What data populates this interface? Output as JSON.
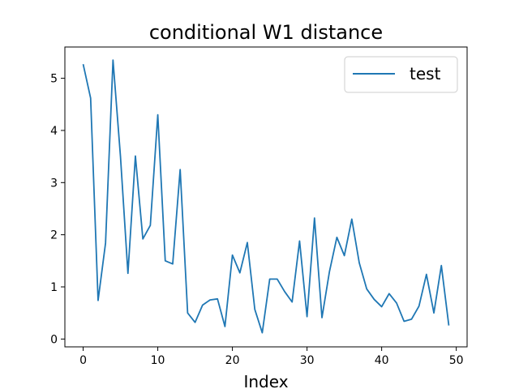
{
  "chart_data": {
    "type": "line",
    "title": "conditional W1 distance",
    "xlabel": "Index",
    "ylabel": "",
    "xlim": [
      -2.45,
      51.45
    ],
    "ylim": [
      -0.15,
      5.6
    ],
    "xticks": [
      0,
      10,
      20,
      30,
      40,
      50
    ],
    "yticks": [
      0,
      1,
      2,
      3,
      4,
      5
    ],
    "grid": false,
    "legend_position": "top-right",
    "series": [
      {
        "name": "test",
        "color": "#1f77b4",
        "x": [
          0,
          1,
          2,
          3,
          4,
          5,
          6,
          7,
          8,
          9,
          10,
          11,
          12,
          13,
          14,
          15,
          16,
          17,
          18,
          19,
          20,
          21,
          22,
          23,
          24,
          25,
          26,
          27,
          28,
          29,
          30,
          31,
          32,
          33,
          34,
          35,
          36,
          37,
          38,
          39,
          40,
          41,
          42,
          43,
          44,
          45,
          46,
          47,
          48,
          49
        ],
        "values": [
          5.27,
          4.62,
          0.74,
          1.84,
          5.35,
          3.5,
          1.26,
          3.51,
          1.92,
          2.18,
          4.3,
          1.5,
          1.44,
          3.25,
          0.5,
          0.32,
          0.65,
          0.75,
          0.77,
          0.24,
          1.61,
          1.27,
          1.85,
          0.57,
          0.12,
          1.15,
          1.15,
          0.91,
          0.71,
          1.88,
          0.43,
          2.32,
          0.41,
          1.29,
          1.95,
          1.6,
          2.3,
          1.46,
          0.96,
          0.76,
          0.62,
          0.87,
          0.69,
          0.34,
          0.38,
          0.63,
          1.24,
          0.5,
          1.41,
          0.26
        ]
      }
    ]
  }
}
